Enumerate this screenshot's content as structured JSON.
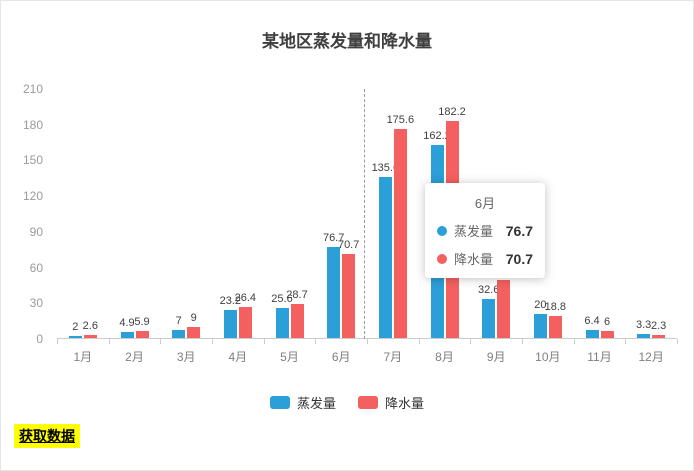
{
  "chart_data": {
    "type": "bar",
    "title": "某地区蒸发量和降水量",
    "categories": [
      "1月",
      "2月",
      "3月",
      "4月",
      "5月",
      "6月",
      "7月",
      "8月",
      "9月",
      "10月",
      "11月",
      "12月"
    ],
    "series": [
      {
        "name": "蒸发量",
        "color": "#2B9FD8",
        "values": [
          2,
          4.9,
          7,
          23.2,
          25.6,
          76.7,
          135.6,
          162.2,
          32.6,
          20,
          6.4,
          3.3
        ]
      },
      {
        "name": "降水量",
        "color": "#F4605F",
        "values": [
          2.6,
          5.9,
          9,
          26.4,
          28.7,
          70.7,
          175.6,
          182.2,
          48.7,
          18.8,
          6,
          2.3
        ]
      }
    ],
    "xlabel": "",
    "ylabel": "",
    "ylim": [
      0,
      210
    ],
    "yticks": [
      0,
      30,
      60,
      90,
      120,
      150,
      180,
      210
    ],
    "grid": false,
    "legend_position": "bottom",
    "axis_pointer": {
      "type": "dashed-line",
      "at_category": "6月"
    }
  },
  "tooltip": {
    "title": "6月",
    "rows": [
      {
        "name": "蒸发量",
        "value": "76.7",
        "color": "#2B9FD8"
      },
      {
        "name": "降水量",
        "value": "70.7",
        "color": "#F4605F"
      }
    ]
  },
  "controls": {
    "fetch_button_label": "获取数据",
    "fetch_button_bg": "#FFFF00"
  }
}
